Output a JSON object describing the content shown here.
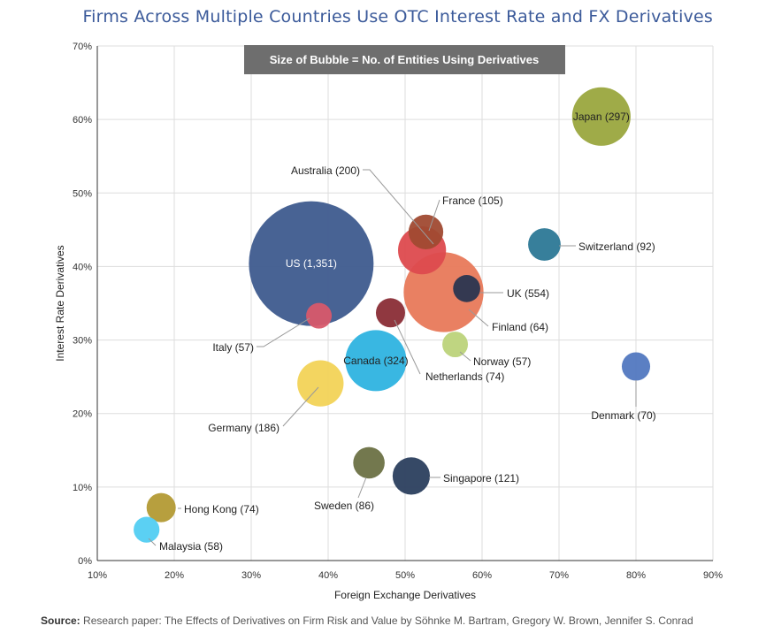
{
  "title": "Firms Across Multiple Countries Use OTC Interest Rate and FX Derivatives",
  "source": {
    "label": "Source:",
    "text": " Research paper: The Effects of Derivatives on Firm Risk and Value by Söhnke M. Bartram, Gregory W. Brown, Jennifer S. Conrad"
  },
  "chart_data": {
    "type": "bubble",
    "title": "Firms Across Multiple Countries Use OTC Interest Rate and FX Derivatives",
    "xlabel": "Foreign Exchange Derivatives",
    "ylabel": "Interest Rate Derivatives",
    "annotation": "Size of Bubble = No. of Entities Using Derivatives",
    "xlim": [
      0.1,
      0.9
    ],
    "ylim": [
      0.0,
      0.7
    ],
    "x_ticks": [
      "10%",
      "20%",
      "30%",
      "40%",
      "50%",
      "60%",
      "70%",
      "80%",
      "90%"
    ],
    "y_ticks": [
      "0%",
      "10%",
      "20%",
      "30%",
      "40%",
      "50%",
      "60%",
      "70%"
    ],
    "grid": true,
    "legend": "none",
    "points": [
      {
        "label": "US (1,351)",
        "x": 0.378,
        "y": 0.404,
        "size": 1351,
        "color": "#3e5b8e"
      },
      {
        "label": "Japan (297)",
        "x": 0.755,
        "y": 0.604,
        "size": 297,
        "color": "#9aa73e"
      },
      {
        "label": "UK (554)",
        "x": 0.55,
        "y": 0.365,
        "size": 554,
        "color": "#e8795a"
      },
      {
        "label": "Canada (324)",
        "x": 0.462,
        "y": 0.272,
        "size": 324,
        "color": "#2eb3e0"
      },
      {
        "label": "Australia (200)",
        "x": 0.522,
        "y": 0.422,
        "size": 200,
        "color": "#dd4a4e"
      },
      {
        "label": "Germany (186)",
        "x": 0.39,
        "y": 0.241,
        "size": 186,
        "color": "#f2d357"
      },
      {
        "label": "Singapore (121)",
        "x": 0.508,
        "y": 0.115,
        "size": 121,
        "color": "#2b3f5e"
      },
      {
        "label": "France (105)",
        "x": 0.527,
        "y": 0.447,
        "size": 105,
        "color": "#a04a32"
      },
      {
        "label": "Switzerland (92)",
        "x": 0.681,
        "y": 0.43,
        "size": 92,
        "color": "#2c7896"
      },
      {
        "label": "Sweden (86)",
        "x": 0.453,
        "y": 0.133,
        "size": 86,
        "color": "#6c7144"
      },
      {
        "label": "Netherlands (74)",
        "x": 0.481,
        "y": 0.337,
        "size": 74,
        "color": "#8a2d36"
      },
      {
        "label": "Hong Kong (74)",
        "x": 0.183,
        "y": 0.072,
        "size": 74,
        "color": "#b39a34"
      },
      {
        "label": "Denmark (70)",
        "x": 0.8,
        "y": 0.264,
        "size": 70,
        "color": "#5278c0"
      },
      {
        "label": "Finland (64)",
        "x": 0.58,
        "y": 0.37,
        "size": 64,
        "color": "#2a3550"
      },
      {
        "label": "Malaysia (58)",
        "x": 0.164,
        "y": 0.042,
        "size": 58,
        "color": "#52cdf2"
      },
      {
        "label": "Italy (57)",
        "x": 0.388,
        "y": 0.333,
        "size": 57,
        "color": "#d8586a"
      },
      {
        "label": "Norway (57)",
        "x": 0.565,
        "y": 0.294,
        "size": 57,
        "color": "#bcd37a"
      }
    ]
  }
}
